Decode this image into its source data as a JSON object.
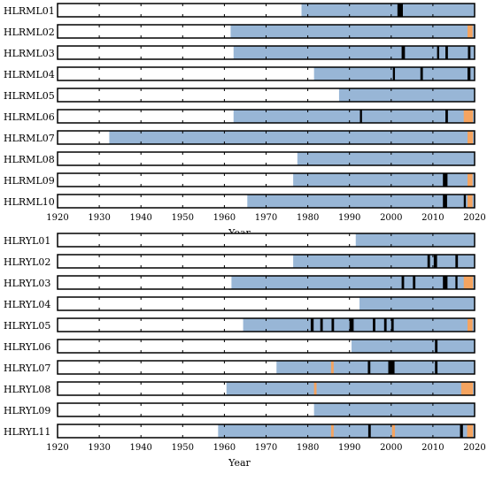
{
  "colors": {
    "record": "#98b6d6",
    "gap": "#000000",
    "special": "#f5a460",
    "frame": "#000000"
  },
  "chart_data": [
    {
      "type": "timeline",
      "xlabel": "Year",
      "xlim": [
        1920,
        2020
      ],
      "xticks": [
        1920,
        1930,
        1940,
        1950,
        1960,
        1970,
        1980,
        1990,
        2000,
        2010,
        2020
      ],
      "stations": [
        {
          "name": "HLRML01",
          "start": 1978.5,
          "gaps": [
            [
              2001.5,
              2002.8
            ]
          ],
          "orange": []
        },
        {
          "name": "HLRML02",
          "start": 1961.5,
          "gaps": [],
          "orange": [
            [
              2018.3,
              2019.5
            ]
          ]
        },
        {
          "name": "HLRML03",
          "start": 1962.2,
          "gaps": [
            [
              2002.5,
              2003.3
            ],
            [
              2011.0,
              2011.5
            ],
            [
              2013.0,
              2013.6
            ],
            [
              2018.4,
              2019.0
            ]
          ],
          "orange": []
        },
        {
          "name": "HLRML04",
          "start": 1981.5,
          "gaps": [
            [
              2000.4,
              2000.9
            ],
            [
              2007.0,
              2007.6
            ],
            [
              2018.3,
              2019.0
            ]
          ],
          "orange": []
        },
        {
          "name": "HLRML05",
          "start": 1987.5,
          "gaps": [],
          "orange": []
        },
        {
          "name": "HLRML06",
          "start": 1962.2,
          "gaps": [
            [
              1992.5,
              1993.0
            ],
            [
              2013.0,
              2013.6
            ]
          ],
          "orange": [
            [
              2017.4,
              2019.6
            ]
          ]
        },
        {
          "name": "HLRML07",
          "start": 1932.4,
          "gaps": [],
          "orange": [
            [
              2018.3,
              2019.6
            ]
          ]
        },
        {
          "name": "HLRML08",
          "start": 1977.5,
          "gaps": [],
          "orange": []
        },
        {
          "name": "HLRML09",
          "start": 1976.5,
          "gaps": [
            [
              2012.4,
              2013.5
            ]
          ],
          "orange": [
            [
              2018.3,
              2019.5
            ]
          ]
        },
        {
          "name": "HLRML10",
          "start": 1965.5,
          "gaps": [
            [
              2012.4,
              2013.4
            ],
            [
              2017.4,
              2017.9
            ]
          ],
          "orange": [
            [
              2018.3,
              2019.5
            ]
          ]
        }
      ]
    },
    {
      "type": "timeline",
      "xlabel": "Year",
      "xlim": [
        1920,
        2020
      ],
      "xticks": [
        1920,
        1930,
        1940,
        1950,
        1960,
        1970,
        1980,
        1990,
        2000,
        2010,
        2020
      ],
      "stations": [
        {
          "name": "HLRYL01",
          "start": 1991.5,
          "gaps": [],
          "orange": []
        },
        {
          "name": "HLRYL02",
          "start": 1976.5,
          "gaps": [
            [
              2008.7,
              2009.3
            ],
            [
              2010.2,
              2011.0
            ],
            [
              2015.4,
              2016.0
            ]
          ],
          "orange": []
        },
        {
          "name": "HLRYL03",
          "start": 1961.7,
          "gaps": [
            [
              2002.5,
              2003.1
            ],
            [
              2005.2,
              2005.8
            ],
            [
              2012.4,
              2013.5
            ],
            [
              2015.4,
              2015.9
            ]
          ],
          "orange": [
            [
              2017.4,
              2019.6
            ]
          ]
        },
        {
          "name": "HLRYL04",
          "start": 1992.4,
          "gaps": [],
          "orange": []
        },
        {
          "name": "HLRYL05",
          "start": 1964.5,
          "gaps": [
            [
              1980.7,
              1981.4
            ],
            [
              1983.0,
              1983.6
            ],
            [
              1985.7,
              1986.3
            ],
            [
              1990.0,
              1991.0
            ],
            [
              1995.6,
              1996.2
            ],
            [
              1998.3,
              1998.9
            ],
            [
              2000.0,
              2000.6
            ]
          ],
          "orange": [
            [
              2018.3,
              2019.5
            ]
          ]
        },
        {
          "name": "HLRYL06",
          "start": 1990.5,
          "gaps": [
            [
              2010.5,
              2011.1
            ]
          ],
          "orange": []
        },
        {
          "name": "HLRYL07",
          "start": 1972.5,
          "gaps": [
            [
              1994.4,
              1995.0
            ],
            [
              1999.3,
              2000.8
            ],
            [
              2010.5,
              2011.1
            ]
          ],
          "orange": [
            [
              1985.6,
              1986.2
            ]
          ]
        },
        {
          "name": "HLRYL08",
          "start": 1960.5,
          "gaps": [],
          "orange": [
            [
              1981.5,
              1982.1
            ],
            [
              2016.8,
              2019.6
            ]
          ]
        },
        {
          "name": "HLRYL09",
          "start": 1981.5,
          "gaps": [],
          "orange": []
        },
        {
          "name": "HLRYL11",
          "start": 1958.5,
          "gaps": [
            [
              1994.5,
              1995.1
            ],
            [
              2016.5,
              2017.2
            ]
          ],
          "orange": [
            [
              1985.6,
              1986.2
            ],
            [
              2000.2,
              2000.9
            ],
            [
              2018.2,
              2019.6
            ]
          ]
        }
      ]
    }
  ]
}
